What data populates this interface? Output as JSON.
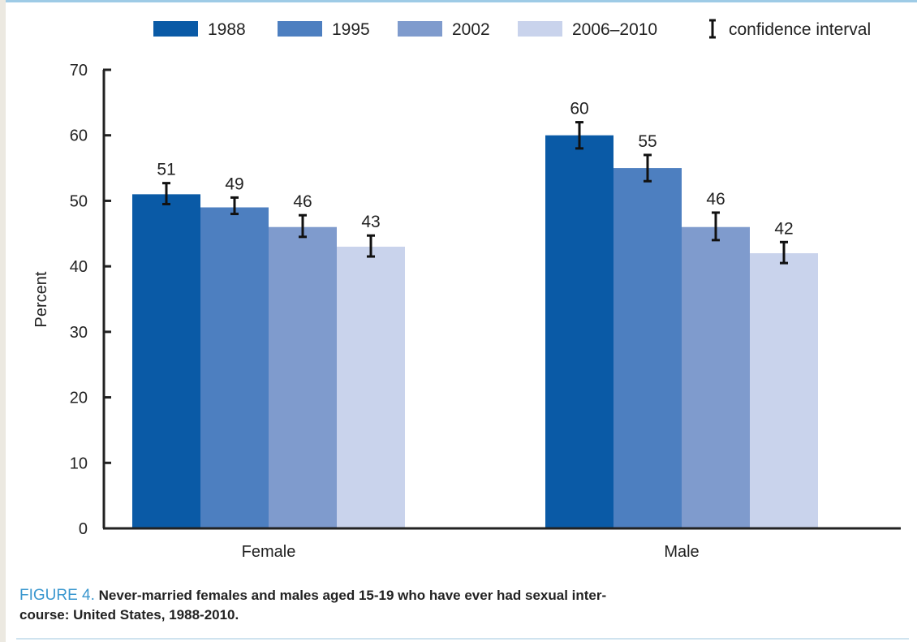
{
  "chart_data": {
    "type": "bar",
    "title": "",
    "xlabel": "",
    "ylabel": "Percent",
    "ylim": [
      0,
      70
    ],
    "yticks": [
      0,
      10,
      20,
      30,
      40,
      50,
      60,
      70
    ],
    "categories": [
      "Female",
      "Male"
    ],
    "grid": false,
    "legend_position": "top",
    "series": [
      {
        "name": "1988",
        "color": "#0a5aa6",
        "values": [
          51,
          60
        ],
        "ci_low": [
          49.5,
          58
        ],
        "ci_high": [
          52.7,
          62
        ]
      },
      {
        "name": "1995",
        "color": "#4d7fc0",
        "values": [
          49,
          55
        ],
        "ci_low": [
          48,
          53
        ],
        "ci_high": [
          50.5,
          57
        ]
      },
      {
        "name": "2002",
        "color": "#7f9bcd",
        "values": [
          46,
          46
        ],
        "ci_low": [
          44.5,
          44
        ],
        "ci_high": [
          47.8,
          48.2
        ]
      },
      {
        "name": "2006–2010",
        "color": "#c9d3ec",
        "values": [
          43,
          42
        ],
        "ci_low": [
          41.5,
          40.5
        ],
        "ci_high": [
          44.7,
          43.7
        ]
      }
    ],
    "legend_extra": "confidence interval"
  },
  "caption": {
    "figure_label": "FIGURE 4.",
    "line1": "Never-married females and males aged 15-19 who have ever had sexual inter-",
    "line2": "course: United States, 1988-2010."
  }
}
